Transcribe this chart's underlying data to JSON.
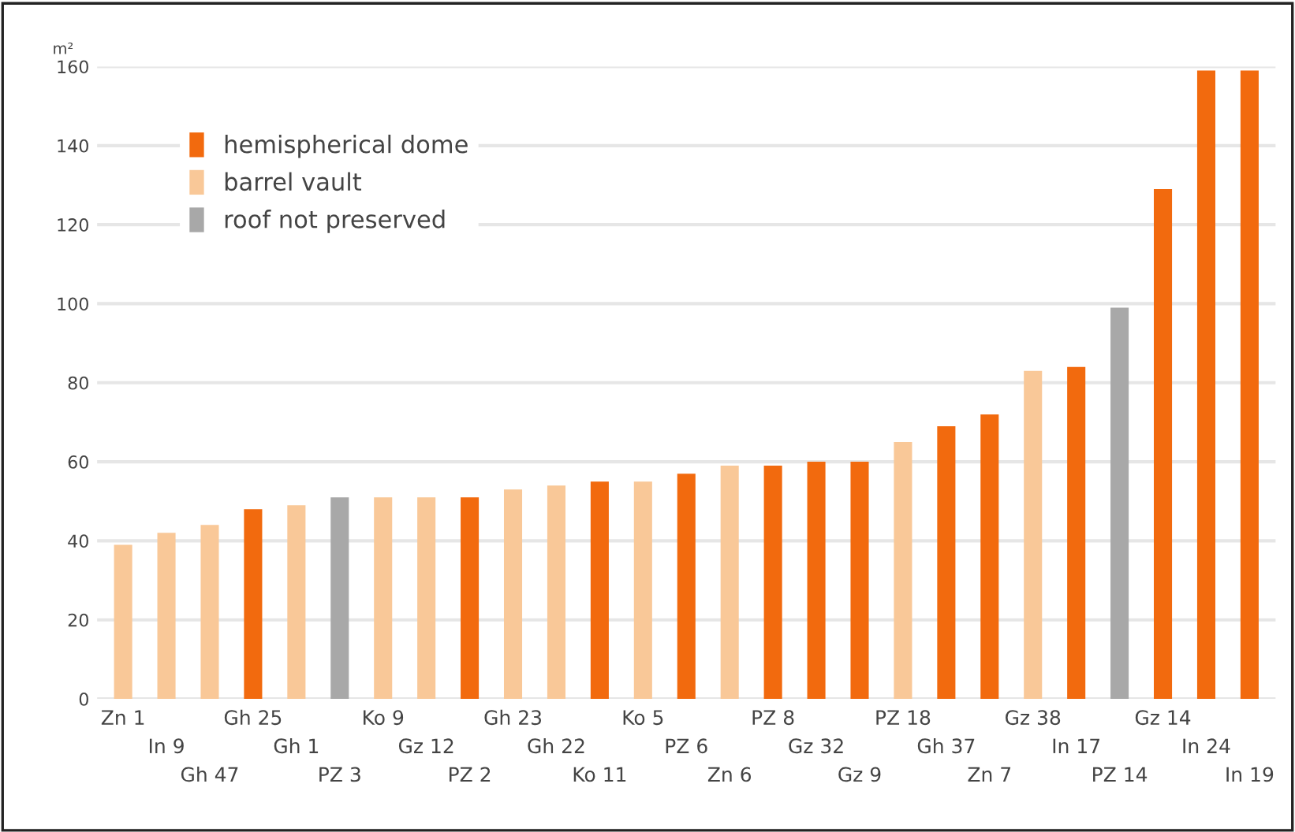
{
  "chart_data": {
    "type": "bar",
    "ylabel": "m²",
    "categories": [
      "Zn 1",
      "In 9",
      "Gh 47",
      "Gh 25",
      "Gh 1",
      "PZ 3",
      "Ko 9",
      "Gz 12",
      "PZ 2",
      "Gh 23",
      "Gh 22",
      "Ko 11",
      "Ko 5",
      "PZ 6",
      "Zn 6",
      "PZ 8",
      "Gz 32",
      "Gz 9",
      "PZ 18",
      "Gh 37",
      "Zn 7",
      "Gz 38",
      "In 17",
      "PZ 14",
      "Gz 14",
      "In 24",
      "In 19"
    ],
    "series": [
      {
        "name": "hemispherical dome",
        "color": "#f26a0e",
        "values": [
          null,
          null,
          null,
          48,
          null,
          null,
          null,
          null,
          51,
          null,
          null,
          55,
          null,
          57,
          null,
          59,
          60,
          60,
          null,
          69,
          72,
          null,
          84,
          null,
          129,
          159,
          159
        ]
      },
      {
        "name": "barrel vault",
        "color": "#f9c898",
        "values": [
          39,
          42,
          44,
          null,
          49,
          null,
          51,
          51,
          null,
          53,
          54,
          null,
          55,
          null,
          59,
          null,
          null,
          null,
          65,
          null,
          null,
          83,
          null,
          null,
          null,
          null,
          null
        ]
      },
      {
        "name": "roof not preserved",
        "color": "#a8a8a8",
        "values": [
          null,
          null,
          null,
          null,
          null,
          51,
          null,
          null,
          null,
          null,
          null,
          null,
          null,
          null,
          null,
          null,
          null,
          null,
          null,
          null,
          null,
          null,
          null,
          99,
          null,
          null,
          null
        ]
      }
    ],
    "ylim": [
      0,
      160
    ],
    "yticks": [
      0,
      20,
      40,
      60,
      80,
      100,
      120,
      140,
      160
    ],
    "grid": "y",
    "legend": "top left"
  }
}
